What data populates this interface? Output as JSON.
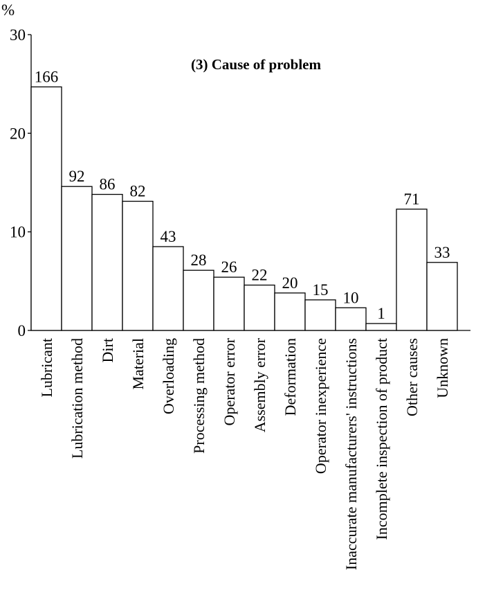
{
  "chart_data": {
    "type": "bar",
    "title": "(3) Cause of problem",
    "y_unit_label": "%",
    "ylim": [
      0,
      30
    ],
    "yticks": [
      0,
      10,
      20,
      30
    ],
    "grid": false,
    "categories": [
      "Lubricant",
      "Lubrication method",
      "Dirt",
      "Material",
      "Overloading",
      "Processing method",
      "Operator error",
      "Assembly error",
      "Deformation",
      "Operator inexperience",
      "Inaccurate manufacturers' instructions",
      "Incomplete inspection of product",
      "Other causes",
      "Unknown"
    ],
    "values": [
      24.7,
      14.6,
      13.8,
      13.1,
      8.5,
      6.1,
      5.4,
      4.6,
      3.8,
      3.1,
      2.3,
      0.7,
      12.3,
      6.9
    ],
    "data_labels": [
      "166",
      "92",
      "86",
      "82",
      "43",
      "28",
      "26",
      "22",
      "20",
      "15",
      "10",
      "1",
      "71",
      "33"
    ]
  }
}
